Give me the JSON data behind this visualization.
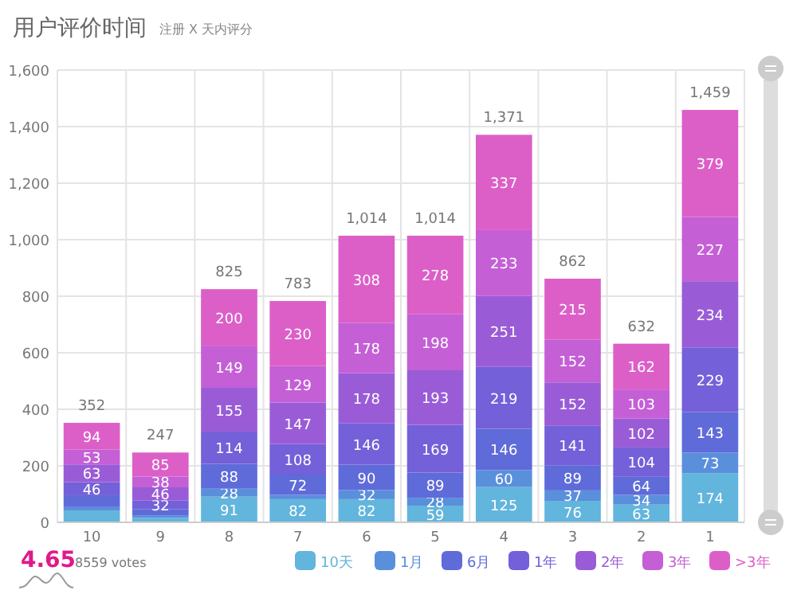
{
  "chart_data": {
    "type": "bar",
    "stacked": true,
    "title": "用户评价时间",
    "subtitle": "注册 X 天内评分",
    "categories": [
      "10",
      "9",
      "8",
      "7",
      "6",
      "5",
      "4",
      "3",
      "2",
      "1"
    ],
    "series": [
      {
        "name": "10天",
        "color": "#62b5dc",
        "values": [
          42,
          16,
          91,
          82,
          82,
          59,
          125,
          76,
          63,
          174
        ],
        "value_labels": [
          null,
          null,
          "91",
          "82",
          "82",
          "59",
          "125",
          "76",
          "63",
          "174"
        ]
      },
      {
        "name": "1月",
        "color": "#5a8fdc",
        "values": [
          12,
          9,
          28,
          15,
          32,
          28,
          60,
          37,
          34,
          73
        ],
        "value_labels": [
          null,
          null,
          "28",
          null,
          "32",
          "28",
          "60",
          "37",
          "34",
          "73"
        ]
      },
      {
        "name": "6月",
        "color": "#5f6bd9",
        "values": [
          42,
          21,
          88,
          72,
          90,
          89,
          146,
          89,
          64,
          143
        ],
        "value_labels": [
          null,
          null,
          "88",
          "72",
          "90",
          "89",
          "146",
          "89",
          "64",
          "143"
        ]
      },
      {
        "name": "1年",
        "color": "#7460d8",
        "values": [
          46,
          32,
          114,
          108,
          146,
          169,
          219,
          141,
          104,
          229
        ],
        "value_labels": [
          "46",
          "32",
          "114",
          "108",
          "146",
          "169",
          "219",
          "141",
          "104",
          "229"
        ]
      },
      {
        "name": "2年",
        "color": "#9a5cd6",
        "values": [
          63,
          46,
          155,
          147,
          178,
          193,
          251,
          152,
          102,
          234
        ],
        "value_labels": [
          "63",
          "46",
          "155",
          "147",
          "178",
          "193",
          "251",
          "152",
          "102",
          "234"
        ]
      },
      {
        "name": "3年",
        "color": "#c45fd6",
        "values": [
          53,
          38,
          149,
          129,
          178,
          198,
          233,
          152,
          103,
          227
        ],
        "value_labels": [
          "53",
          "38",
          "149",
          "129",
          "178",
          "198",
          "233",
          "152",
          "103",
          "227"
        ]
      },
      {
        "name": ">3年",
        "color": "#dc5fc8",
        "values": [
          94,
          85,
          200,
          230,
          308,
          278,
          337,
          215,
          162,
          379
        ],
        "value_labels": [
          "94",
          "85",
          "200",
          "230",
          "308",
          "278",
          "337",
          "215",
          "162",
          "379"
        ]
      }
    ],
    "totals": [
      "352",
      "247",
      "825",
      "783",
      "1,014",
      "1,014",
      "1,371",
      "862",
      "632",
      "1,459"
    ],
    "ylim": [
      0,
      1600
    ],
    "yticks": [
      0,
      200,
      400,
      600,
      800,
      {
        "value": 1000,
        "label": "1,000"
      },
      {
        "value": 1200,
        "label": "1,200"
      },
      {
        "value": 1400,
        "label": "1,400"
      },
      {
        "value": 1600,
        "label": "1,600"
      }
    ],
    "grid": true,
    "legend": "bottom right",
    "annotations": [
      "4.65",
      "8559 votes"
    ]
  }
}
